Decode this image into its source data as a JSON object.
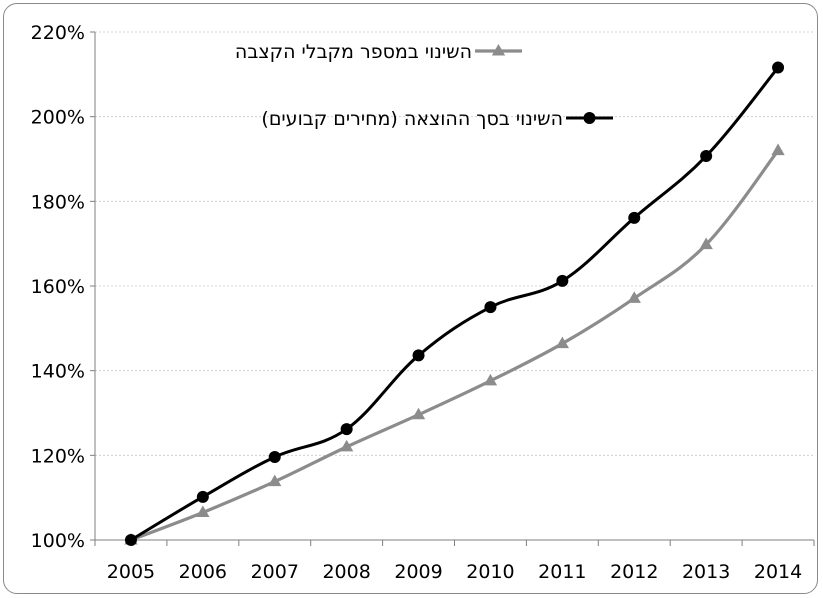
{
  "chart_data": {
    "type": "line",
    "title": "",
    "xlabel": "",
    "ylabel": "",
    "categories": [
      "2005",
      "2006",
      "2007",
      "2008",
      "2009",
      "2010",
      "2011",
      "2012",
      "2013",
      "2014"
    ],
    "ylim": [
      100,
      220
    ],
    "yticks": [
      100,
      120,
      140,
      160,
      180,
      200,
      220
    ],
    "ytick_labels": [
      "100%",
      "120%",
      "140%",
      "160%",
      "180%",
      "200%",
      "220%"
    ],
    "grid": true,
    "legend_position": "top",
    "series": [
      {
        "name": "השינוי במספר מקבלי הקצבה",
        "marker": "triangle",
        "color": "#8c8c8c",
        "values": [
          100,
          106.5,
          113.8,
          122,
          129.6,
          137.6,
          146.4,
          157.1,
          169.8,
          192
        ]
      },
      {
        "name": "השינוי בסך ההוצאה (מחירים קבועים)",
        "marker": "circle",
        "color": "#000000",
        "values": [
          100,
          110.2,
          119.6,
          126.2,
          143.6,
          155,
          161.2,
          176.1,
          190.7,
          211.6
        ]
      }
    ]
  }
}
